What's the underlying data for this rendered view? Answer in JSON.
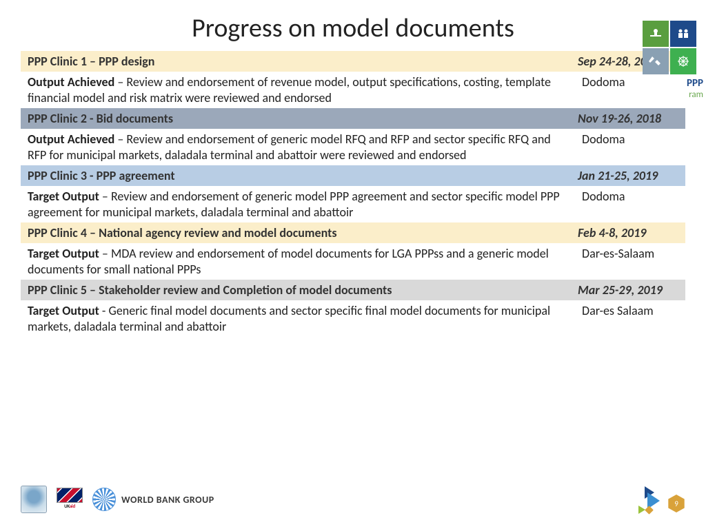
{
  "title": "Progress on model documents",
  "toplogo": {
    "line1": "PPP",
    "line2": "ram"
  },
  "rows": [
    {
      "header": "PPP Clinic 1 – PPP design",
      "date": "Sep 24-28, 2018",
      "bg": "#fbeeca",
      "fg": "#333333",
      "date_fg": "#333333",
      "detail_label": "Output Achieved",
      "detail_text": " – Review and endorsement of revenue model, output specifications, costing, template financial model and risk matrix were reviewed and endorsed",
      "location": "Dodoma"
    },
    {
      "header": "PPP Clinic 2 -  Bid documents",
      "date": "Nov 19-26, 2018",
      "bg": "#9ba8ba",
      "fg": "#333333",
      "date_fg": "#333333",
      "detail_label": "Output Achieved",
      "detail_text": " – Review and endorsement of generic model RFQ and RFP and sector specific RFQ and RFP for municipal markets, daladala terminal and abattoir were reviewed and endorsed",
      "location": "Dodoma"
    },
    {
      "header": "PPP Clinic 3 -  PPP agreement",
      "date": "Jan 21-25, 2019",
      "bg": "#b8cde4",
      "fg": "#333333",
      "date_fg": "#333333",
      "detail_label": "Target Output",
      "detail_text": " – Review and endorsement of generic model PPP agreement and sector specific model PPP agreement for municipal markets, daladala terminal and abattoir",
      "location": "Dodoma"
    },
    {
      "header": "PPP Clinic 4 – National agency review and model documents",
      "date": "Feb 4-8, 2019",
      "bg": "#fbeeca",
      "fg": "#333333",
      "date_fg": "#333333",
      "detail_label": "Target Output",
      "detail_text": " – MDA review and endorsement of model documents for LGA PPPss and a generic model documents for small national PPPs",
      "location": "Dar-es-Salaam"
    },
    {
      "header": "PPP Clinic 5 – Stakeholder review and Completion of model documents",
      "date": "Mar 25-29, 2019",
      "bg": "#d9d9d9",
      "fg": "#333333",
      "date_fg": "#333333",
      "detail_label": "Target Output",
      "detail_text": " - Generic final model documents and sector specific final model documents for municipal markets, daladala terminal and abattoir",
      "location": "Dar-es Salaam"
    }
  ],
  "footer": {
    "ukaid_label_1": "UK",
    "ukaid_label_2": "aid",
    "wb_text": "WORLD BANK GROUP",
    "page_number": "9"
  },
  "header_fontsize": 18
}
